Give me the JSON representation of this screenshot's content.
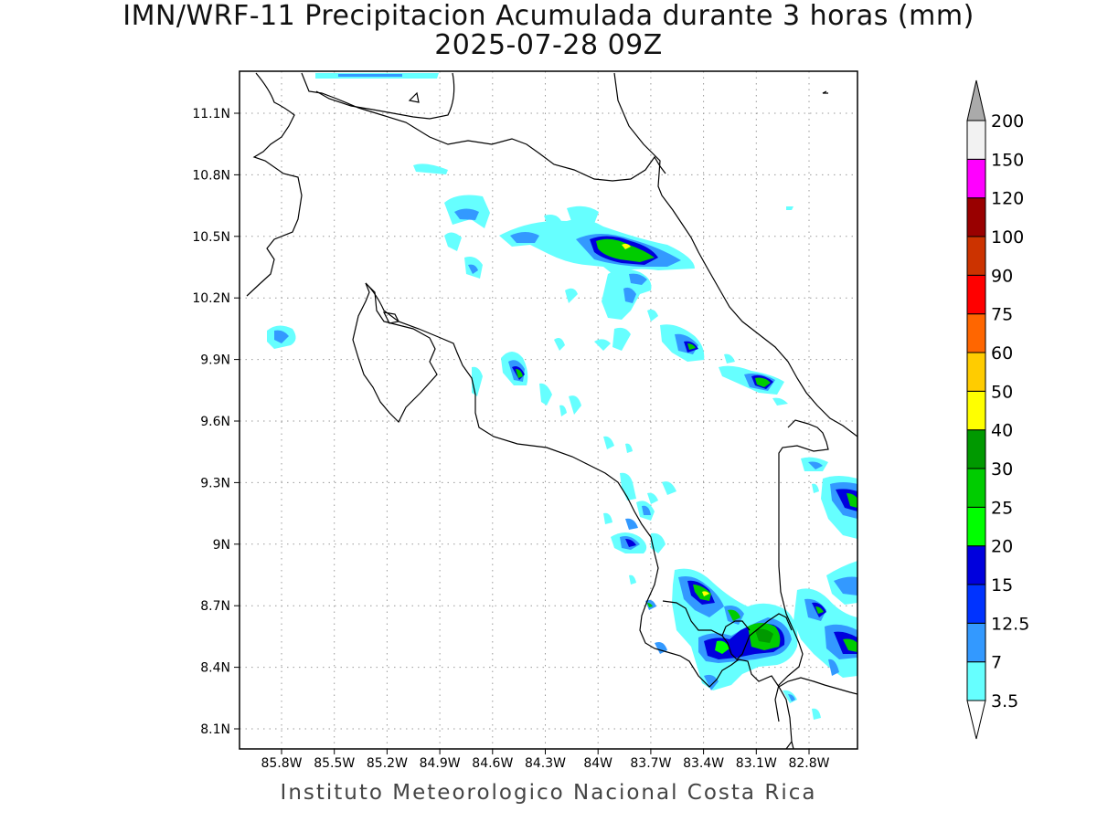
{
  "title": "IMN/WRF-11 Precipitacion Acumulada durante 3 horas (mm)",
  "subtitle": "2025-07-28 09Z",
  "footer": "Instituto Meteorologico Nacional Costa Rica",
  "x_ticks": [
    "85.8W",
    "85.5W",
    "85.2W",
    "84.9W",
    "84.6W",
    "84.3W",
    "84W",
    "83.7W",
    "83.4W",
    "83.1W",
    "82.8W"
  ],
  "y_ticks": [
    "11.1N",
    "10.8N",
    "10.5N",
    "10.2N",
    "9.9N",
    "9.6N",
    "9.3N",
    "9N",
    "8.7N",
    "8.4N",
    "8.1N"
  ],
  "colorbar": {
    "labels": [
      "3.5",
      "7",
      "12.5",
      "15",
      "20",
      "25",
      "30",
      "40",
      "50",
      "60",
      "75",
      "90",
      "100",
      "120",
      "150",
      "200"
    ],
    "colors": [
      "#66ffff",
      "#3399ff",
      "#0033ff",
      "#0000dd",
      "#00ff00",
      "#00cc00",
      "#009900",
      "#ffff00",
      "#ffcc00",
      "#ff6600",
      "#ff0000",
      "#cc3300",
      "#990000",
      "#ff00ff",
      "#9933cc",
      "#f2f2f2",
      "#aaaaaa"
    ]
  }
}
